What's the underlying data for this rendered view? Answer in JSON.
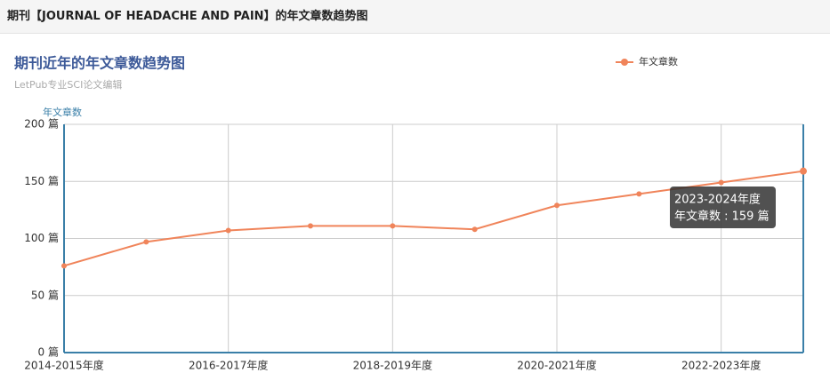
{
  "header": {
    "title": "期刊【JOURNAL OF HEADACHE AND PAIN】的年文章数趋势图"
  },
  "chart_data": {
    "type": "line",
    "title": "期刊近年的年文章数趋势图",
    "subtitle": "LetPub专业SCI论文编辑",
    "y_axis_label": "年文章数",
    "categories": [
      "2014-2015年度",
      null,
      "2016-2017年度",
      null,
      "2018-2019年度",
      null,
      "2020-2021年度",
      null,
      "2022-2023年度",
      null
    ],
    "series": [
      {
        "name": "年文章数",
        "color": "#f0845a",
        "values": [
          76,
          97,
          107,
          111,
          111,
          108,
          129,
          139,
          149,
          159
        ]
      }
    ],
    "ylim": [
      0,
      200
    ],
    "yticks": [
      {
        "value": 0,
        "label": "0 篇"
      },
      {
        "value": 50,
        "label": "50 篇"
      },
      {
        "value": 100,
        "label": "100 篇"
      },
      {
        "value": 150,
        "label": "150 篇"
      },
      {
        "value": 200,
        "label": "200 篇"
      }
    ],
    "grid": true,
    "legend": "top-right",
    "tooltip": {
      "title": "2023-2024年度",
      "text": "年文章数 : 159 篇"
    }
  }
}
